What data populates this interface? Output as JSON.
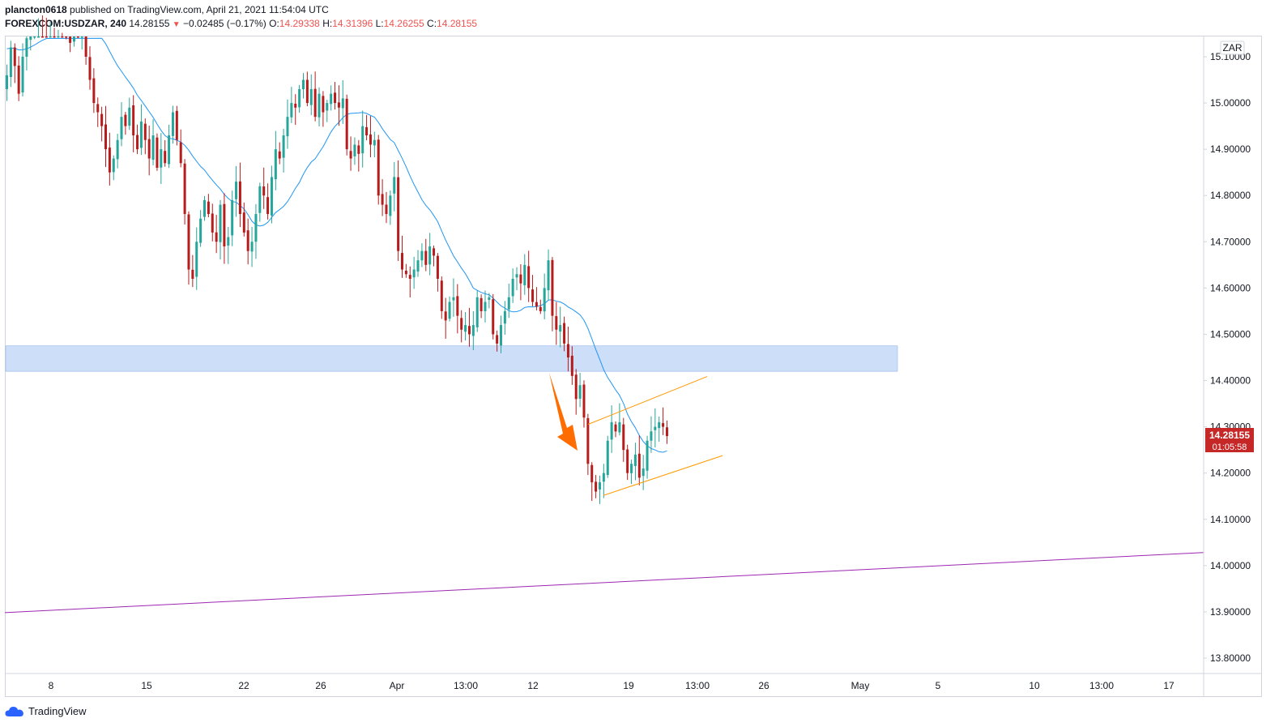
{
  "header": {
    "author": "plancton0618",
    "published_text": "published on TradingView.com, April 21, 2021 11:54:04 UTC",
    "symbol": "FOREXCOM:USDZAR, 240",
    "last": "14.28155",
    "change": "−0.02485 (−0.17%)",
    "o_label": "O:",
    "o_value": "14.29338",
    "h_label": "H:",
    "h_value": "14.31396",
    "l_label": "L:",
    "l_value": "14.26255",
    "c_label": "C:",
    "c_value": "14.28155"
  },
  "currency_badge": "ZAR",
  "price_tag": {
    "price": "14.28155",
    "countdown": "01:05:58",
    "color": "#c62828"
  },
  "footer": {
    "brand": "TradingView"
  },
  "colors": {
    "up": "#26a69a",
    "down": "#b71c1c",
    "ma": "#2196f3",
    "zone": "#bbd3f5",
    "channel": "#ff9800",
    "arrow": "#ff6d00",
    "trend": "#9c27b0"
  },
  "chart_data": {
    "type": "candlestick",
    "symbol": "FOREXCOM:USDZAR",
    "interval": "240",
    "y_ticks": [
      "15.10000",
      "15.00000",
      "14.90000",
      "14.80000",
      "14.70000",
      "14.60000",
      "14.50000",
      "14.40000",
      "14.30000",
      "14.20000",
      "14.10000",
      "14.00000",
      "13.90000",
      "13.80000"
    ],
    "x_ticks": [
      "8",
      "15",
      "22",
      "26",
      "Apr",
      "13:00",
      "12",
      "19",
      "13:00",
      "26",
      "May",
      "5",
      "10",
      "13:00",
      "17"
    ],
    "ylim": [
      13.765,
      15.175
    ],
    "close_series": [
      15.06,
      15.12,
      15.08,
      15.02,
      15.1,
      15.14,
      15.18,
      15.2,
      15.22,
      15.21,
      15.2,
      15.22,
      15.18,
      15.2,
      15.19,
      15.16,
      15.13,
      15.17,
      15.15,
      15.17,
      15.1,
      15.05,
      15.0,
      14.98,
      14.95,
      14.9,
      14.85,
      14.88,
      14.92,
      14.97,
      14.95,
      14.99,
      14.93,
      14.9,
      14.96,
      14.92,
      14.88,
      14.93,
      14.86,
      14.9,
      14.87,
      14.93,
      14.98,
      14.92,
      14.87,
      14.76,
      14.64,
      14.62,
      14.7,
      14.75,
      14.79,
      14.76,
      14.72,
      14.7,
      14.78,
      14.69,
      14.71,
      14.79,
      14.83,
      14.76,
      14.72,
      14.68,
      14.7,
      14.76,
      14.82,
      14.8,
      14.76,
      14.84,
      14.9,
      14.88,
      14.93,
      14.97,
      15.0,
      14.99,
      15.03,
      15.05,
      15.0,
      15.03,
      14.97,
      15.02,
      14.98,
      15.0,
      15.02,
      15.0,
      14.99,
      15.01,
      14.9,
      14.88,
      14.91,
      14.89,
      14.95,
      14.93,
      14.91,
      14.92,
      14.8,
      14.78,
      14.76,
      14.8,
      14.84,
      14.68,
      14.64,
      14.63,
      14.62,
      14.64,
      14.66,
      14.68,
      14.65,
      14.69,
      14.67,
      14.62,
      14.55,
      14.53,
      14.57,
      14.58,
      14.54,
      14.51,
      14.52,
      14.5,
      14.52,
      14.58,
      14.55,
      14.57,
      14.58,
      14.5,
      14.48,
      14.52,
      14.55,
      14.58,
      14.62,
      14.63,
      14.61,
      14.65,
      14.6,
      14.57,
      14.56,
      14.55,
      14.6,
      14.66,
      14.54,
      14.51,
      14.52,
      14.48,
      14.45,
      14.41,
      14.36,
      14.39,
      14.32,
      14.22,
      14.18,
      14.16,
      14.18,
      14.2,
      14.27,
      14.31,
      14.29,
      14.31,
      14.25,
      14.2,
      14.22,
      14.24,
      14.19,
      14.21,
      14.27,
      14.29,
      14.3,
      14.31,
      14.3,
      14.28
    ],
    "moving_average": {
      "type": "MA",
      "length": 20
    },
    "annotations": [
      {
        "type": "zone",
        "y1": 14.42,
        "y2": 14.475,
        "label": ""
      },
      {
        "type": "channel",
        "upper": [
          [
            14.3,
            14.4
          ]
        ],
        "lower": [
          [
            14.15,
            14.25
          ]
        ]
      },
      {
        "type": "arrow",
        "direction": "down"
      },
      {
        "type": "trendline",
        "y_start": 13.9,
        "y_end": 14.03
      }
    ]
  }
}
